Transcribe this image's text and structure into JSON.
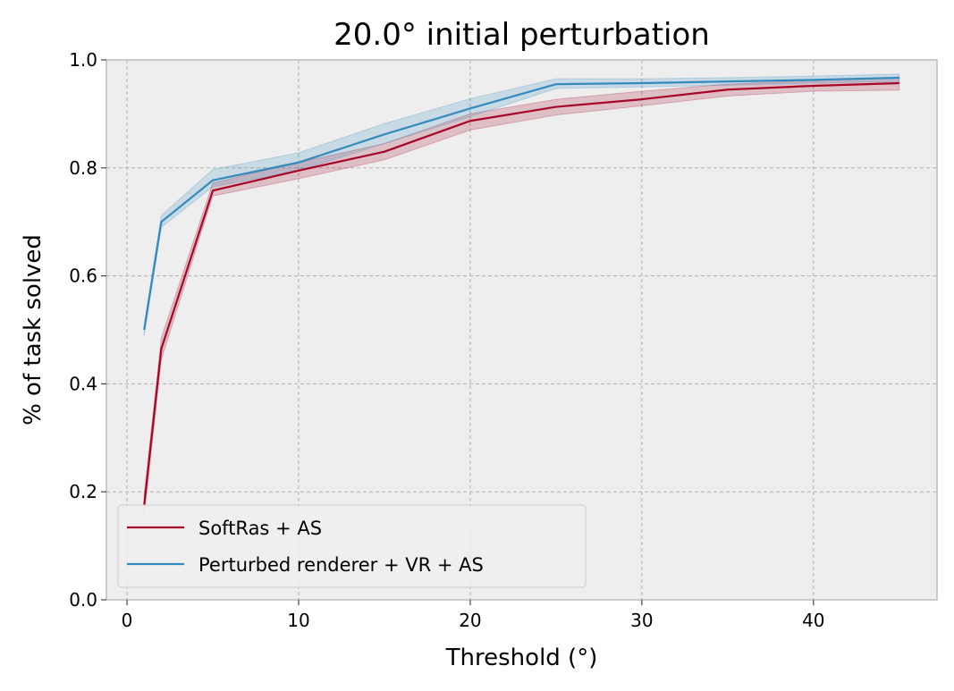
{
  "chart_data": {
    "type": "line",
    "title": "20.0° initial perturbation",
    "xlabel": "Threshold (°)",
    "ylabel": "% of task solved",
    "xlim": [
      -1.2,
      47.2
    ],
    "ylim": [
      0.0,
      1.0
    ],
    "xticks": [
      0,
      10,
      20,
      30,
      40
    ],
    "yticks": [
      0.0,
      0.2,
      0.4,
      0.6,
      0.8,
      1.0
    ],
    "xtick_labels": [
      "0",
      "10",
      "20",
      "30",
      "40"
    ],
    "ytick_labels": [
      "0.0",
      "0.2",
      "0.4",
      "0.6",
      "0.8",
      "1.0"
    ],
    "grid": true,
    "legend_position": "lower-left",
    "series": [
      {
        "name": "SoftRas + AS",
        "color": "#a60628",
        "x": [
          1,
          2,
          5,
          10,
          15,
          20,
          25,
          30,
          35,
          40,
          45
        ],
        "y": [
          0.175,
          0.465,
          0.758,
          0.795,
          0.83,
          0.887,
          0.913,
          0.927,
          0.945,
          0.952,
          0.957
        ],
        "band_lower": [
          0.155,
          0.445,
          0.748,
          0.78,
          0.815,
          0.87,
          0.898,
          0.915,
          0.933,
          0.942,
          0.944
        ],
        "band_upper": [
          0.195,
          0.485,
          0.772,
          0.81,
          0.845,
          0.9,
          0.927,
          0.942,
          0.955,
          0.962,
          0.968
        ]
      },
      {
        "name": "Perturbed renderer + VR + AS",
        "color": "#348abd",
        "x": [
          1,
          2,
          5,
          10,
          15,
          20,
          25,
          30,
          35,
          40,
          45
        ],
        "y": [
          0.5,
          0.7,
          0.777,
          0.81,
          0.862,
          0.91,
          0.955,
          0.957,
          0.96,
          0.963,
          0.967
        ],
        "band_lower": [
          0.488,
          0.69,
          0.765,
          0.795,
          0.845,
          0.895,
          0.947,
          0.95,
          0.953,
          0.957,
          0.96
        ],
        "band_upper": [
          0.51,
          0.712,
          0.797,
          0.828,
          0.882,
          0.928,
          0.965,
          0.965,
          0.967,
          0.97,
          0.974
        ]
      }
    ]
  }
}
